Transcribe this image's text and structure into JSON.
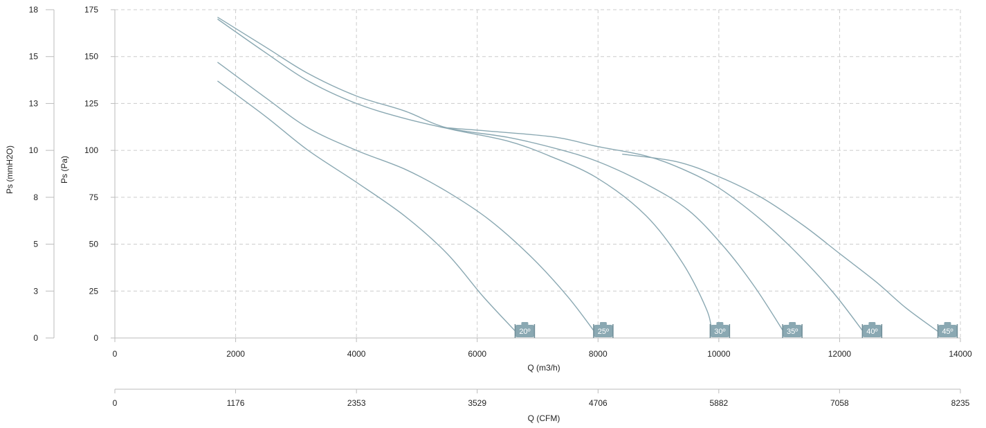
{
  "chart_data": {
    "type": "line",
    "xlabel": "Q (m3/h)",
    "x2label": "Q (CFM)",
    "ylabel": "Ps (Pa)",
    "y2label": "Ps (mmH2O)",
    "xlim": [
      0,
      14000
    ],
    "ylim": [
      0,
      175
    ],
    "x_ticks": [
      0,
      2000,
      4000,
      6000,
      8000,
      10000,
      12000,
      14000
    ],
    "y_ticks": [
      0,
      25,
      50,
      75,
      100,
      125,
      150,
      175
    ],
    "x2_ticks": [
      {
        "value": 0,
        "label": "0"
      },
      {
        "value": 1176,
        "label": "1176"
      },
      {
        "value": 2353,
        "label": "2353"
      },
      {
        "value": 3529,
        "label": "3529"
      },
      {
        "value": 4706,
        "label": "4706"
      },
      {
        "value": 5882,
        "label": "5882"
      },
      {
        "value": 7058,
        "label": "7058"
      },
      {
        "value": 8235,
        "label": "8235"
      }
    ],
    "y2_ticks": [
      {
        "value": 0,
        "label": "0"
      },
      {
        "value": 25,
        "label": "3"
      },
      {
        "value": 50,
        "label": "5"
      },
      {
        "value": 75,
        "label": "8"
      },
      {
        "value": 100,
        "label": "10"
      },
      {
        "value": 125,
        "label": "13"
      },
      {
        "value": 150,
        "label": "15"
      },
      {
        "value": 175,
        "label": "18"
      }
    ],
    "grid": true,
    "line_color": "#8aa8b2",
    "grid_color": "#cccccc",
    "series": [
      {
        "label": "20º",
        "points": [
          [
            1700,
            137
          ],
          [
            2500,
            118
          ],
          [
            3200,
            100
          ],
          [
            4000,
            83
          ],
          [
            4800,
            65
          ],
          [
            5500,
            45
          ],
          [
            6100,
            22
          ],
          [
            6650,
            3
          ]
        ]
      },
      {
        "label": "25º",
        "points": [
          [
            1700,
            147
          ],
          [
            2500,
            128
          ],
          [
            3200,
            112
          ],
          [
            4000,
            100
          ],
          [
            4800,
            90
          ],
          [
            5500,
            78
          ],
          [
            6200,
            63
          ],
          [
            6900,
            43
          ],
          [
            7500,
            22
          ],
          [
            7950,
            3
          ]
        ]
      },
      {
        "label": "30º",
        "points": [
          [
            1700,
            170
          ],
          [
            2500,
            152
          ],
          [
            3200,
            137
          ],
          [
            4000,
            125
          ],
          [
            4800,
            117
          ],
          [
            5600,
            111
          ],
          [
            6500,
            105
          ],
          [
            7200,
            97
          ],
          [
            8000,
            85
          ],
          [
            8800,
            65
          ],
          [
            9400,
            40
          ],
          [
            9800,
            15
          ],
          [
            9880,
            3
          ]
        ]
      },
      {
        "label": "35º",
        "points": [
          [
            1700,
            171
          ],
          [
            2500,
            155
          ],
          [
            3200,
            141
          ],
          [
            4000,
            129
          ],
          [
            4800,
            121
          ],
          [
            5500,
            112
          ],
          [
            6500,
            107
          ],
          [
            7300,
            101
          ],
          [
            8000,
            94
          ],
          [
            8800,
            82
          ],
          [
            9500,
            68
          ],
          [
            10100,
            48
          ],
          [
            10600,
            27
          ],
          [
            11080,
            3
          ]
        ]
      },
      {
        "label": "40º",
        "points": [
          [
            5500,
            112
          ],
          [
            6300,
            110
          ],
          [
            7300,
            107
          ],
          [
            8000,
            102
          ],
          [
            8800,
            97
          ],
          [
            9400,
            90
          ],
          [
            10000,
            80
          ],
          [
            10700,
            63
          ],
          [
            11300,
            45
          ],
          [
            11900,
            24
          ],
          [
            12400,
            3
          ]
        ]
      },
      {
        "label": "45º",
        "points": [
          [
            8400,
            98
          ],
          [
            9300,
            94
          ],
          [
            10000,
            86
          ],
          [
            10700,
            75
          ],
          [
            11400,
            60
          ],
          [
            12000,
            45
          ],
          [
            12600,
            30
          ],
          [
            13100,
            16
          ],
          [
            13650,
            3
          ]
        ]
      }
    ]
  }
}
